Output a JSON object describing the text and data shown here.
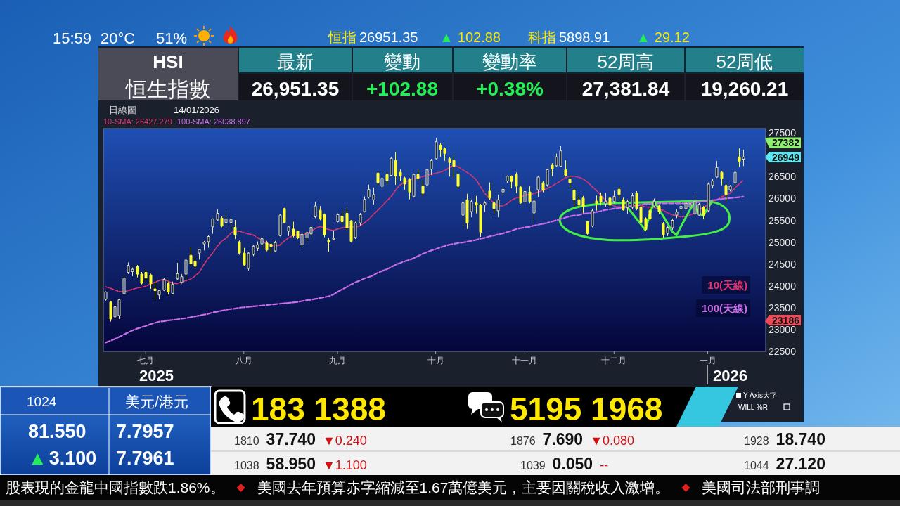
{
  "chart_data": {
    "type": "candlestick",
    "title": "HSI",
    "subtitle": "恒生指數",
    "categories": [
      null,
      null,
      null,
      null,
      null,
      null,
      null,
      null,
      null,
      "七月",
      null,
      null,
      null,
      null,
      null,
      null,
      null,
      null,
      null,
      null,
      null,
      null,
      null,
      null,
      null,
      null,
      null,
      null,
      null,
      null,
      null,
      "八月",
      null,
      null,
      null,
      null,
      null,
      null,
      null,
      null,
      null,
      null,
      null,
      null,
      null,
      null,
      null,
      null,
      null,
      null,
      null,
      null,
      "九月",
      null,
      null,
      null,
      null,
      null,
      null,
      null,
      null,
      null,
      null,
      null,
      null,
      null,
      null,
      null,
      null,
      null,
      null,
      null,
      null,
      null,
      "十月",
      null,
      null,
      null,
      null,
      null,
      null,
      null,
      null,
      null,
      null,
      null,
      null,
      null,
      null,
      null,
      null,
      null,
      null,
      null,
      "十一月",
      null,
      null,
      null,
      null,
      null,
      null,
      null,
      null,
      null,
      null,
      null,
      null,
      null,
      null,
      null,
      null,
      null,
      null,
      null,
      "十二月",
      null,
      null,
      null,
      null,
      null,
      null,
      null,
      null,
      null,
      null,
      null,
      null,
      null,
      null,
      null,
      null,
      null,
      null,
      null,
      null,
      "一月",
      null,
      null,
      null,
      null,
      null,
      null,
      null,
      null
    ],
    "ohlc": [
      [
        23690,
        23870,
        23670,
        23860
      ],
      [
        23630,
        23640,
        23190,
        23240
      ],
      [
        23290,
        23540,
        23270,
        23520
      ],
      [
        23320,
        23700,
        23250,
        23680
      ],
      [
        23820,
        24230,
        23810,
        24180
      ],
      [
        24310,
        24530,
        24280,
        24470
      ],
      [
        24330,
        24410,
        24230,
        24380
      ],
      [
        24440,
        24470,
        24200,
        24270
      ],
      [
        24270,
        24310,
        24040,
        24060
      ],
      [
        24310,
        24370,
        24100,
        24180
      ],
      [
        24250,
        24270,
        23940,
        24050
      ],
      [
        23930,
        24090,
        23680,
        23890
      ],
      [
        23790,
        23900,
        23700,
        23890
      ],
      [
        23900,
        24170,
        23890,
        24150
      ],
      [
        24060,
        24080,
        23810,
        23860
      ],
      [
        23830,
        24090,
        23810,
        24040
      ],
      [
        24160,
        24520,
        24150,
        24280
      ],
      [
        24080,
        24260,
        24060,
        24210
      ],
      [
        24270,
        24610,
        24110,
        24590
      ],
      [
        24700,
        24870,
        24480,
        24510
      ],
      [
        24560,
        24670,
        24440,
        24450
      ],
      [
        24750,
        24840,
        24610,
        24830
      ],
      [
        24960,
        25020,
        24820,
        25000
      ],
      [
        25010,
        25150,
        24880,
        25130
      ],
      [
        25350,
        25540,
        25200,
        25530
      ],
      [
        25510,
        25740,
        25500,
        25660
      ],
      [
        25550,
        25580,
        25350,
        25370
      ],
      [
        25450,
        25670,
        25390,
        25530
      ],
      [
        25450,
        25530,
        25260,
        25520
      ],
      [
        25340,
        25500,
        25080,
        25170
      ],
      [
        25010,
        25030,
        24720,
        24750
      ],
      [
        24750,
        24860,
        24470,
        24480
      ],
      [
        24400,
        24760,
        24360,
        24750
      ],
      [
        24720,
        24920,
        24690,
        24910
      ],
      [
        24860,
        25010,
        24810,
        24940
      ],
      [
        24960,
        25110,
        24830,
        25080
      ],
      [
        24980,
        25020,
        24800,
        24820
      ],
      [
        24950,
        24960,
        24760,
        24900
      ],
      [
        24800,
        25020,
        24790,
        24990
      ],
      [
        25150,
        25630,
        25140,
        25620
      ],
      [
        25770,
        25780,
        25440,
        25450
      ],
      [
        25250,
        25370,
        25150,
        25350
      ],
      [
        25300,
        25460,
        25120,
        25150
      ],
      [
        25250,
        25260,
        25080,
        25100
      ],
      [
        24940,
        25200,
        24870,
        25180
      ],
      [
        25100,
        25230,
        24990,
        25220
      ],
      [
        25190,
        25350,
        25120,
        25340
      ],
      [
        25580,
        25920,
        25560,
        25830
      ],
      [
        25730,
        25820,
        25510,
        25530
      ],
      [
        25630,
        25650,
        25120,
        25170
      ],
      [
        25040,
        25090,
        24790,
        25000
      ],
      [
        25070,
        25260,
        25050,
        25090
      ],
      [
        25470,
        25650,
        25460,
        25630
      ],
      [
        25590,
        25700,
        25420,
        25470
      ],
      [
        25660,
        25780,
        25290,
        25330
      ],
      [
        25490,
        25500,
        25010,
        25020
      ],
      [
        25110,
        25460,
        25080,
        25440
      ],
      [
        25440,
        25660,
        25390,
        25630
      ],
      [
        25700,
        26040,
        25690,
        25980
      ],
      [
        26030,
        26310,
        26010,
        26210
      ],
      [
        25970,
        26240,
        25870,
        26090
      ],
      [
        26580,
        26590,
        26330,
        26360
      ],
      [
        26280,
        26470,
        26260,
        26460
      ],
      [
        26550,
        26600,
        26320,
        26410
      ],
      [
        26530,
        26940,
        26520,
        26920
      ],
      [
        26870,
        27060,
        26320,
        26520
      ],
      [
        26600,
        26660,
        26410,
        26520
      ],
      [
        26470,
        26490,
        26210,
        26330
      ],
      [
        26440,
        26460,
        25990,
        26150
      ],
      [
        26050,
        26560,
        26040,
        26550
      ],
      [
        26550,
        26660,
        26410,
        26460
      ],
      [
        26280,
        26400,
        26050,
        26120
      ],
      [
        26310,
        26670,
        26300,
        26660
      ],
      [
        26670,
        26900,
        26550,
        26870
      ],
      [
        26910,
        27380,
        26900,
        27300
      ],
      [
        27220,
        27260,
        26960,
        27110
      ],
      [
        27140,
        27160,
        26870,
        27030
      ],
      [
        26910,
        26940,
        26510,
        26820
      ],
      [
        26870,
        26980,
        26480,
        26740
      ],
      [
        26550,
        26580,
        26240,
        26280
      ],
      [
        25620,
        25940,
        25330,
        25900
      ],
      [
        25970,
        26100,
        25310,
        25440
      ],
      [
        25700,
        25970,
        25580,
        25930
      ],
      [
        25900,
        26050,
        25670,
        25850
      ],
      [
        25850,
        25870,
        25130,
        25230
      ],
      [
        25850,
        25930,
        25700,
        25900
      ],
      [
        26170,
        26360,
        25980,
        26010
      ],
      [
        25900,
        25940,
        25650,
        25770
      ],
      [
        25720,
        26080,
        25580,
        25970
      ],
      [
        26150,
        26240,
        26060,
        26210
      ],
      [
        26400,
        26520,
        26360,
        26510
      ],
      [
        26510,
        26520,
        26240,
        26390
      ],
      [
        26550,
        26590,
        26130,
        26280
      ],
      [
        26260,
        26280,
        25890,
        25900
      ],
      [
        25920,
        26170,
        25890,
        26160
      ],
      [
        26150,
        26280,
        25900,
        25930
      ],
      [
        25670,
        25970,
        25490,
        25940
      ],
      [
        26200,
        26510,
        26050,
        26490
      ],
      [
        26360,
        26390,
        26150,
        26190
      ],
      [
        26310,
        26670,
        26280,
        26660
      ],
      [
        26760,
        26800,
        26520,
        26680
      ],
      [
        26750,
        27020,
        26730,
        26950
      ],
      [
        26740,
        27190,
        26730,
        27090
      ],
      [
        26660,
        26870,
        26510,
        26530
      ],
      [
        26440,
        26490,
        26240,
        26360
      ],
      [
        26190,
        26200,
        25820,
        25970
      ],
      [
        25970,
        26050,
        25800,
        25850
      ],
      [
        26010,
        26050,
        25670,
        25820
      ],
      [
        25470,
        25480,
        25180,
        25200
      ],
      [
        25370,
        25760,
        25350,
        25720
      ],
      [
        25940,
        26060,
        25730,
        25890
      ],
      [
        26050,
        26130,
        25850,
        25920
      ],
      [
        25880,
        26120,
        25820,
        25940
      ],
      [
        26010,
        26030,
        25810,
        25850
      ],
      [
        25930,
        26170,
        25900,
        26050
      ],
      [
        26210,
        26260,
        25970,
        26090
      ],
      [
        25970,
        26010,
        25730,
        25740
      ],
      [
        25800,
        25970,
        25660,
        25930
      ],
      [
        25800,
        26120,
        25770,
        26060
      ],
      [
        26120,
        26160,
        25740,
        25770
      ],
      [
        25800,
        25820,
        25420,
        25450
      ],
      [
        25540,
        25560,
        25260,
        25290
      ],
      [
        25730,
        25820,
        25500,
        25530
      ],
      [
        25830,
        25990,
        25800,
        25940
      ],
      [
        25830,
        25850,
        25650,
        25700
      ],
      [
        25420,
        25450,
        25110,
        25170
      ],
      [
        25200,
        25370,
        25150,
        25340
      ],
      [
        25330,
        25530,
        25290,
        25500
      ],
      [
        25620,
        25740,
        25560,
        25690
      ],
      [
        25770,
        25850,
        25660,
        25820
      ],
      [
        25770,
        25900,
        25720,
        25890
      ],
      [
        25800,
        25900,
        25770,
        25880
      ],
      [
        25650,
        26090,
        25620,
        25930
      ],
      [
        25620,
        25890,
        25610,
        25870
      ],
      [
        25800,
        25820,
        25530,
        25620
      ],
      [
        25720,
        26360,
        25700,
        26330
      ],
      [
        26300,
        26440,
        26240,
        26400
      ],
      [
        26490,
        26850,
        26480,
        26710
      ],
      [
        26600,
        26620,
        26310,
        26460
      ],
      [
        26300,
        26320,
        25940,
        26090
      ],
      [
        26200,
        26300,
        26170,
        26280
      ],
      [
        26360,
        26620,
        26210,
        26600
      ],
      [
        26950,
        27140,
        26730,
        26850
      ],
      [
        26900,
        27110,
        26750,
        26950
      ]
    ],
    "series": [
      {
        "name": "10(天線)",
        "type": "line",
        "color": "#e0356e",
        "values": [
          23980,
          23950,
          23910,
          23870,
          23860,
          23890,
          23920,
          23950,
          23970,
          23990,
          24040,
          24080,
          24120,
          24150,
          24110,
          24060,
          24050,
          24090,
          24120,
          24150,
          24220,
          24310,
          24480,
          24630,
          24750,
          24900,
          25020,
          25090,
          25200,
          25260,
          25250,
          25220,
          25190,
          25170,
          25110,
          25040,
          24970,
          24940,
          24910,
          24930,
          25020,
          25100,
          25150,
          25170,
          25170,
          25190,
          25250,
          25310,
          25360,
          25330,
          25290,
          25270,
          25300,
          25330,
          25340,
          25350,
          25350,
          25370,
          25440,
          25520,
          25630,
          25730,
          25830,
          25940,
          26040,
          26190,
          26310,
          26370,
          26410,
          26450,
          26470,
          26500,
          26530,
          26550,
          26580,
          26600,
          26640,
          26700,
          26760,
          26730,
          26660,
          26600,
          26530,
          26440,
          26280,
          26120,
          26010,
          25900,
          25830,
          25830,
          25880,
          25960,
          26010,
          26040,
          26070,
          26090,
          26110,
          26150,
          26180,
          26230,
          26280,
          26340,
          26400,
          26470,
          26510,
          26510,
          26490,
          26450,
          26380,
          26280,
          26190,
          26080,
          25960,
          25880,
          25830,
          25810,
          25810,
          25820,
          25820,
          25850,
          25840,
          25810,
          25800,
          25790,
          25770,
          25730,
          25670,
          25630,
          25600,
          25580,
          25590,
          25620,
          25660,
          25730,
          25800,
          25850,
          25920,
          25970,
          26030,
          26080,
          26120,
          26230,
          26330,
          26420
        ]
      },
      {
        "name": "100(天線)",
        "type": "line",
        "color": "#c86ee6",
        "values": [
          22700,
          22740,
          22780,
          22830,
          22880,
          22930,
          22980,
          23020,
          23050,
          23080,
          23120,
          23150,
          23180,
          23190,
          23210,
          23220,
          23230,
          23250,
          23260,
          23280,
          23300,
          23320,
          23340,
          23360,
          23390,
          23410,
          23430,
          23450,
          23470,
          23480,
          23500,
          23510,
          23520,
          23530,
          23540,
          23550,
          23560,
          23570,
          23580,
          23590,
          23600,
          23610,
          23620,
          23630,
          23650,
          23670,
          23680,
          23700,
          23720,
          23740,
          23760,
          23800,
          23860,
          23920,
          23970,
          24030,
          24080,
          24120,
          24170,
          24200,
          24240,
          24300,
          24340,
          24380,
          24430,
          24480,
          24520,
          24560,
          24590,
          24630,
          24680,
          24730,
          24770,
          24810,
          24840,
          24880,
          24910,
          24940,
          24960,
          24980,
          24990,
          25010,
          25030,
          25050,
          25080,
          25100,
          25130,
          25150,
          25180,
          25200,
          25230,
          25260,
          25300,
          25320,
          25340,
          25350,
          25380,
          25400,
          25420,
          25440,
          25470,
          25500,
          25530,
          25560,
          25590,
          25610,
          25620,
          25650,
          25660,
          25670,
          25690,
          25710,
          25740,
          25750,
          25770,
          25780,
          25800,
          25810,
          25830,
          25840,
          25860,
          25880,
          25880,
          25890,
          25890,
          25890,
          25890,
          25890,
          25890,
          25890,
          25890,
          25900,
          25910,
          25920,
          25930,
          25940,
          25960,
          25970,
          25990,
          26000,
          26010,
          26020,
          26030,
          26040
        ]
      },
      {
        "type": "line",
        "color": "#44ee44",
        "line_style": "solid",
        "values": [
          null,
          null,
          null,
          null,
          null,
          null,
          null,
          null,
          null,
          null,
          null,
          null,
          null,
          null,
          null,
          null,
          null,
          null,
          null,
          null,
          null,
          null,
          null,
          null,
          null,
          null,
          null,
          null,
          null,
          null,
          null,
          null,
          null,
          null,
          null,
          null,
          null,
          null,
          null,
          null,
          null,
          null,
          null,
          null,
          null,
          null,
          null,
          null,
          null,
          null,
          null,
          null,
          null,
          null,
          null,
          null,
          null,
          null,
          null,
          null,
          null,
          null,
          null,
          null,
          null,
          null,
          null,
          null,
          null,
          null,
          null,
          null,
          null,
          null,
          null,
          null,
          null,
          null,
          null,
          null,
          null,
          null,
          null,
          null,
          null,
          null,
          null,
          null,
          null,
          null,
          null,
          null,
          null,
          null,
          null,
          null,
          null,
          null,
          null,
          null,
          null,
          null,
          null,
          null,
          null,
          null,
          null,
          null,
          null,
          null,
          null,
          null,
          null,
          null,
          null,
          null,
          null,
          25800,
          25670,
          25540,
          25410,
          25280,
          25630,
          25940,
          25770,
          25600,
          25430,
          25250,
          25160,
          25360,
          25550,
          25740,
          25900,
          25660,
          25610,
          25780,
          25940,
          null,
          null,
          null,
          null,
          null,
          null,
          null
        ]
      }
    ],
    "line_style": "dashed",
    "legend": "bottom right",
    "ylim": [
      22500,
      27600
    ],
    "yticks": [
      22500,
      23000,
      23500,
      24000,
      24500,
      25000,
      25500,
      26000,
      26500,
      27500
    ],
    "annotations": [
      "15:59",
      "20°C",
      "51%",
      "恒指",
      "26951.35",
      "▲ 102.88",
      "科指",
      "5898.91",
      "▲ 29.12",
      "最新",
      "26,951.35",
      "變動",
      "+102.88",
      "變動率",
      "+0.38%",
      "52周高",
      "27,381.84",
      "52周低",
      "19,260.21",
      "日線圖",
      "14/01/2026",
      "10-SMA: 26427.279",
      "100-SMA: 26038.897",
      "2025",
      "2026",
      "Y-Axis大字",
      "WILL %R",
      "1024",
      "美元/港元",
      "81.550",
      "7.7957",
      "▲3.100",
      "7.7961",
      "183 1388",
      "5195 1968",
      "1810 37.740 ▼0.240",
      "1876 7.690 ▼0.080",
      "1928 18.740",
      "1038 58.950 ▼1.100",
      "1039 0.050 --",
      "1044 27.120",
      "股表現的金龍中國指數跌1.86%。",
      "美國去年預算赤字縮減至1.67萬億美元，主要因關稅收入激增。",
      "美國司法部刑事調",
      "27382",
      "26949",
      "23186"
    ]
  }
}
